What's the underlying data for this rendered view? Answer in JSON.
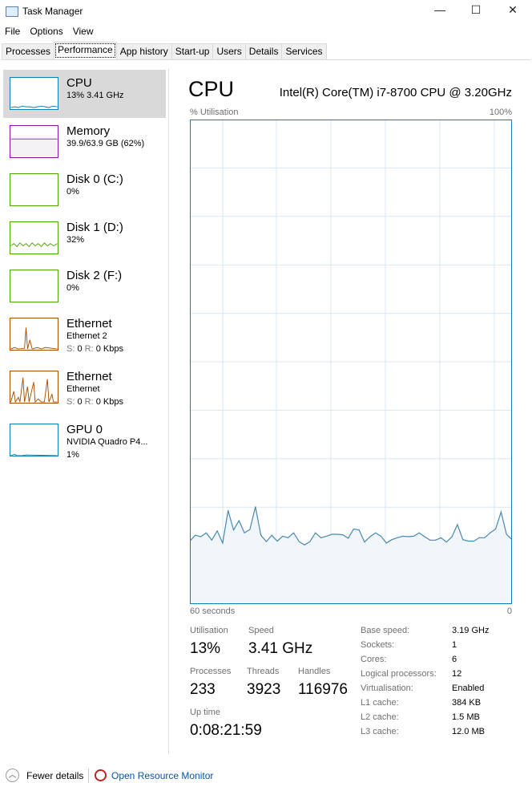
{
  "window": {
    "title": "Task Manager",
    "minimize": "—",
    "maximize": "☐",
    "close": "✕"
  },
  "menu": [
    "File",
    "Options",
    "View"
  ],
  "tabs": [
    "Processes",
    "Performance",
    "App history",
    "Start-up",
    "Users",
    "Details",
    "Services"
  ],
  "active_tab": "Performance",
  "sidebar": [
    {
      "name": "CPU",
      "sub": "13% 3.41 GHz",
      "color": "#117dbb"
    },
    {
      "name": "Memory",
      "sub": "39.9/63.9 GB (62%)",
      "color": "#8b12ae"
    },
    {
      "name": "Disk 0 (C:)",
      "sub": "0%",
      "color": "#4da60c"
    },
    {
      "name": "Disk 1 (D:)",
      "sub": "32%",
      "color": "#4da60c"
    },
    {
      "name": "Disk 2 (F:)",
      "sub": "0%",
      "color": "#4da60c"
    },
    {
      "name": "Ethernet",
      "sub": "Ethernet 2",
      "s_label": "S:",
      "s_val": "0",
      "r_label": "R:",
      "r_val": "0 Kbps",
      "color": "#a74f01"
    },
    {
      "name": "Ethernet",
      "sub": "Ethernet",
      "s_label": "S:",
      "s_val": "0",
      "r_label": "R:",
      "r_val": "0 Kbps",
      "color": "#a74f01"
    },
    {
      "name": "GPU 0",
      "sub": "NVIDIA Quadro P4...",
      "sub2": "1%",
      "color": "#117dbb"
    }
  ],
  "main": {
    "title": "CPU",
    "model": "Intel(R) Core(TM) i7-8700 CPU @ 3.20GHz",
    "ylabel": "% Utilisation",
    "ymax_label": "100%",
    "xleft_label": "60 seconds",
    "xright_label": "0"
  },
  "stats": {
    "utilisation_label": "Utilisation",
    "utilisation": "13%",
    "speed_label": "Speed",
    "speed": "3.41 GHz",
    "processes_label": "Processes",
    "processes": "233",
    "threads_label": "Threads",
    "threads": "3923",
    "handles_label": "Handles",
    "handles": "116976",
    "uptime_label": "Up time",
    "uptime": "0:08:21:59"
  },
  "details": [
    [
      "Base speed:",
      "3.19 GHz"
    ],
    [
      "Sockets:",
      "1"
    ],
    [
      "Cores:",
      "6"
    ],
    [
      "Logical processors:",
      "12"
    ],
    [
      "Virtualisation:",
      "Enabled"
    ],
    [
      "L1 cache:",
      "384 KB"
    ],
    [
      "L2 cache:",
      "1.5 MB"
    ],
    [
      "L3 cache:",
      "12.0 MB"
    ]
  ],
  "footer": {
    "fewer_details": "Fewer details",
    "resource_monitor": "Open Resource Monitor"
  },
  "chart_data": {
    "type": "area",
    "title": "CPU",
    "ylabel": "% Utilisation",
    "ylim": [
      0,
      100
    ],
    "xlim": [
      60,
      0
    ],
    "xlabel": "60 seconds",
    "grid": true,
    "values": [
      13.0,
      14.2,
      13.9,
      14.7,
      13.2,
      15.1,
      12.6,
      19.3,
      15.3,
      17.2,
      14.7,
      15.4,
      20.1,
      14.2,
      12.9,
      14.2,
      13.0,
      14.0,
      13.7,
      14.7,
      12.9,
      12.2,
      12.9,
      14.7,
      13.7,
      14.0,
      14.4,
      14.4,
      14.3,
      13.6,
      15.5,
      15.3,
      12.8,
      13.9,
      14.7,
      14.0,
      12.6,
      13.3,
      13.7,
      14.0,
      13.9,
      14.0,
      14.7,
      13.9,
      13.2,
      13.2,
      13.7,
      12.8,
      13.9,
      16.4,
      13.3,
      13.0,
      13.0,
      13.7,
      13.7,
      14.7,
      15.5,
      19.0,
      14.4,
      13.3
    ]
  }
}
